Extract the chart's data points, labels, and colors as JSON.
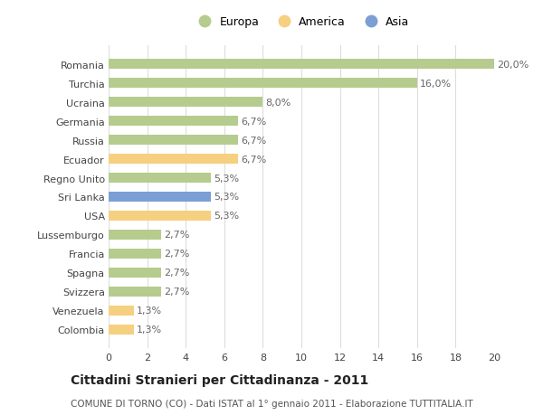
{
  "countries": [
    "Romania",
    "Turchia",
    "Ucraina",
    "Germania",
    "Russia",
    "Ecuador",
    "Regno Unito",
    "Sri Lanka",
    "USA",
    "Lussemburgo",
    "Francia",
    "Spagna",
    "Svizzera",
    "Venezuela",
    "Colombia"
  ],
  "values": [
    20.0,
    16.0,
    8.0,
    6.7,
    6.7,
    6.7,
    5.3,
    5.3,
    5.3,
    2.7,
    2.7,
    2.7,
    2.7,
    1.3,
    1.3
  ],
  "labels": [
    "20,0%",
    "16,0%",
    "8,0%",
    "6,7%",
    "6,7%",
    "6,7%",
    "5,3%",
    "5,3%",
    "5,3%",
    "2,7%",
    "2,7%",
    "2,7%",
    "2,7%",
    "1,3%",
    "1,3%"
  ],
  "continents": [
    "Europa",
    "Europa",
    "Europa",
    "Europa",
    "Europa",
    "America",
    "Europa",
    "Asia",
    "America",
    "Europa",
    "Europa",
    "Europa",
    "Europa",
    "America",
    "America"
  ],
  "continent_colors": {
    "Europa": "#b5cc8e",
    "America": "#f5d080",
    "Asia": "#7b9fd4"
  },
  "legend_order": [
    "Europa",
    "America",
    "Asia"
  ],
  "xlim": [
    0,
    20
  ],
  "xticks": [
    0,
    2,
    4,
    6,
    8,
    10,
    12,
    14,
    16,
    18,
    20
  ],
  "title": "Cittadini Stranieri per Cittadinanza - 2011",
  "subtitle": "COMUNE DI TORNO (CO) - Dati ISTAT al 1° gennaio 2011 - Elaborazione TUTTITALIA.IT",
  "background_color": "#ffffff",
  "grid_color": "#dddddd",
  "bar_height": 0.55,
  "label_fontsize": 8,
  "tick_fontsize": 8,
  "title_fontsize": 10,
  "subtitle_fontsize": 7.5
}
